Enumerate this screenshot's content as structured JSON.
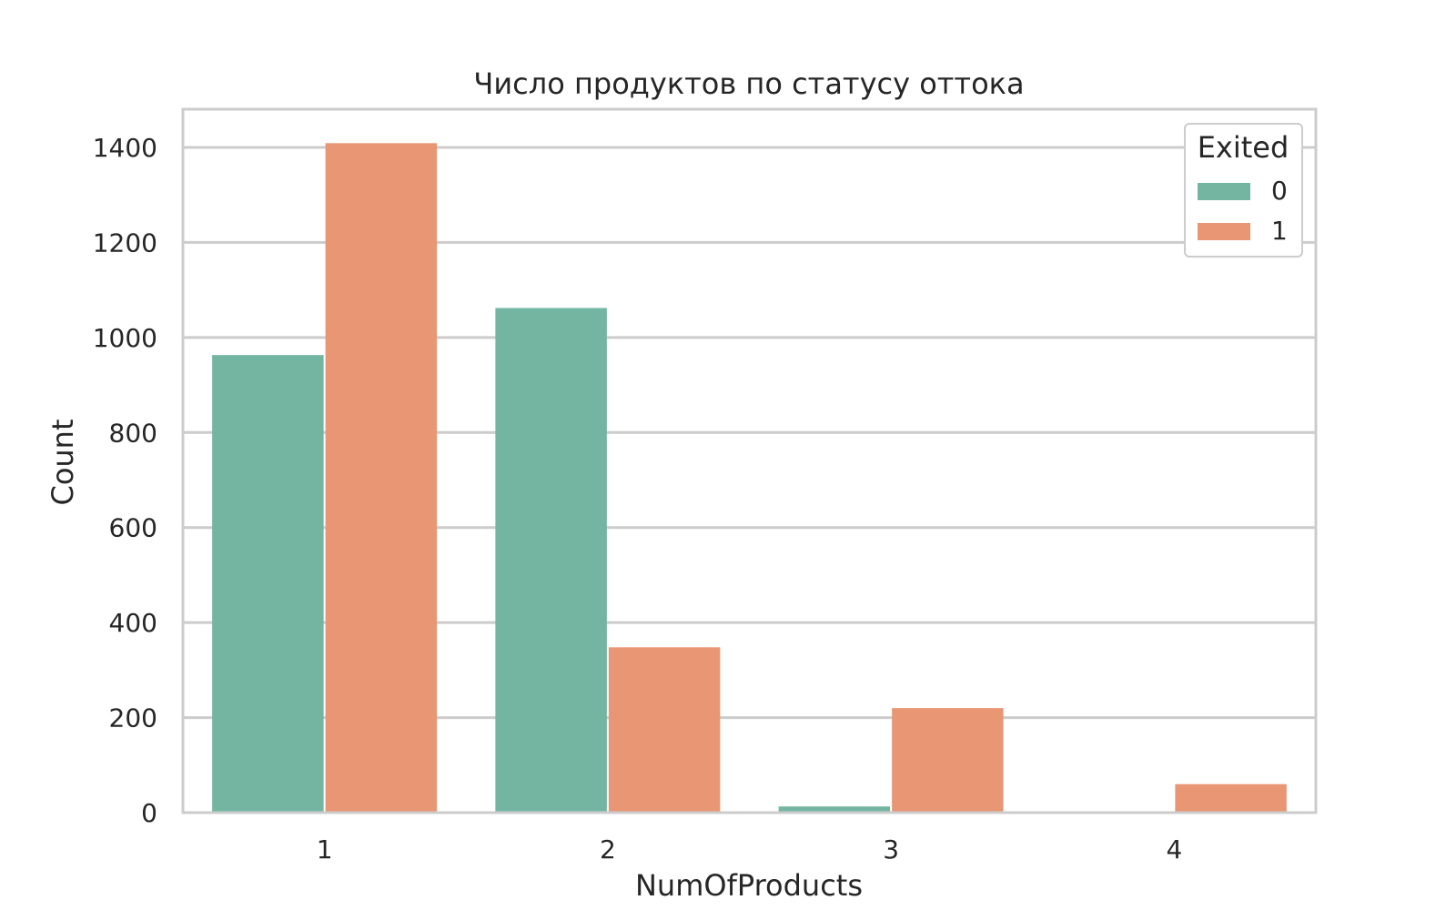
{
  "chart_data": {
    "type": "bar",
    "title": "Число продуктов по статусу оттока",
    "xlabel": "NumOfProducts",
    "ylabel": "Count",
    "categories": [
      "1",
      "2",
      "3",
      "4"
    ],
    "series": [
      {
        "name": "0",
        "color": "#73b5a0",
        "values": [
          963,
          1062,
          13,
          0
        ]
      },
      {
        "name": "1",
        "color": "#e89674",
        "values": [
          1409,
          348,
          220,
          60
        ]
      }
    ],
    "ylim": [
      0,
      1400
    ],
    "y_ticks": [
      "0",
      "200",
      "400",
      "600",
      "800",
      "1000",
      "1200",
      "1400"
    ],
    "grid": true,
    "legend": {
      "title": "Exited",
      "placement": "top-right"
    }
  }
}
